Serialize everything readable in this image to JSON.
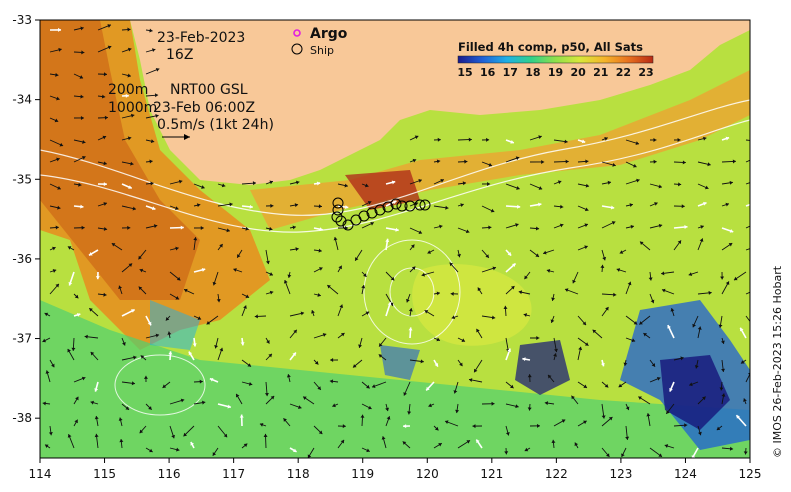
{
  "map": {
    "date": "23-Feb-2023",
    "hour": "16Z",
    "depth_200": "200m",
    "depth_1000": "1000m",
    "product": "NRT00 GSL",
    "valid_time": "23-Feb 06:00Z",
    "scale_label": "0.5m/s (1kt 24h)",
    "legend_argo": "Argo",
    "legend_ship": "Ship",
    "colorbar_title": "Filled 4h comp, p50, All Sats",
    "colorbar_ticks": [
      "15",
      "16",
      "17",
      "18",
      "19",
      "20",
      "21",
      "22",
      "23"
    ],
    "colorbar_colors": [
      "#1a1a8c",
      "#1f5fd6",
      "#1fb0e6",
      "#2fd08a",
      "#8fe04a",
      "#d8e83a",
      "#f5b52a",
      "#e8701e",
      "#b82a14"
    ],
    "credit": "© IMOS 26-Feb-2023 15:26 Hobart",
    "land_color": "#f8c898",
    "x_ticks": [
      "114",
      "115",
      "116",
      "117",
      "118",
      "119",
      "120",
      "121",
      "122",
      "123",
      "124",
      "125"
    ],
    "y_ticks": [
      "-33",
      "-34",
      "-35",
      "-36",
      "-37",
      "-38"
    ],
    "x_range": [
      114,
      125
    ],
    "y_range": [
      -38.5,
      -33
    ]
  }
}
